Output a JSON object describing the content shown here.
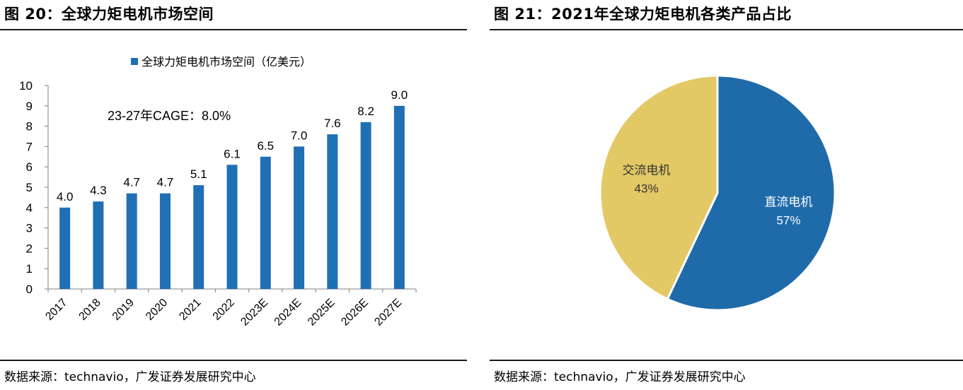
{
  "left": {
    "title": "图 20：全球力矩电机市场空间",
    "source": "数据来源：technavio，广发证券发展研究中心"
  },
  "right": {
    "title": "图 21：2021年全球力矩电机各类产品占比",
    "source": "数据来源：technavio，广发证券发展研究中心"
  },
  "chart_data": [
    {
      "type": "bar",
      "title": "",
      "categories": [
        "2017",
        "2018",
        "2019",
        "2020",
        "2021",
        "2022",
        "2023E",
        "2024E",
        "2025E",
        "2026E",
        "2027E"
      ],
      "series": [
        {
          "name": "全球力矩电机市场空间（亿美元）",
          "values": [
            4.0,
            4.3,
            4.7,
            4.7,
            5.1,
            6.1,
            6.5,
            7.0,
            7.6,
            8.2,
            9.0
          ],
          "color": "#1F6FB5"
        }
      ],
      "data_labels": [
        "4.0",
        "4.3",
        "4.7",
        "4.7",
        "5.1",
        "6.1",
        "6.5",
        "7.0",
        "7.6",
        "8.2",
        "9.0"
      ],
      "annotation": "23-27年CAGE：8.0%",
      "ylim": [
        0,
        10
      ],
      "yticks": [
        0,
        1,
        2,
        3,
        4,
        5,
        6,
        7,
        8,
        9,
        10
      ],
      "grid": false,
      "legend_position": "top"
    },
    {
      "type": "pie",
      "slices": [
        {
          "label": "直流电机",
          "value": 57,
          "pct_label": "57%",
          "color": "#1F6BAA",
          "label_color": "#ffffff"
        },
        {
          "label": "交流电机",
          "value": 43,
          "pct_label": "43%",
          "color": "#E3C866",
          "label_color": "#333333"
        }
      ]
    }
  ]
}
